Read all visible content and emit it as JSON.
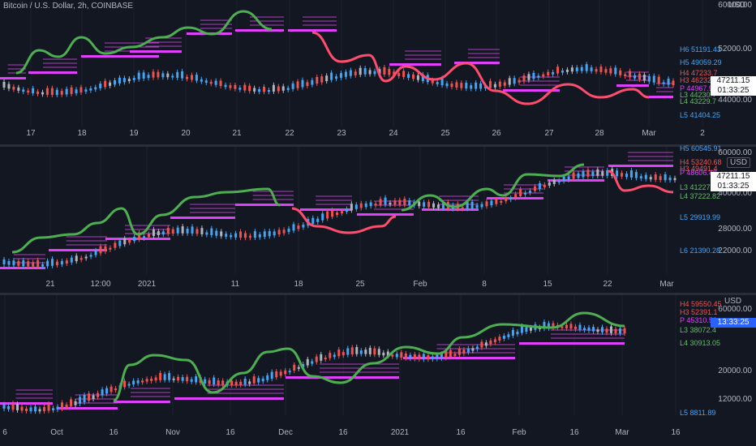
{
  "panes": [
    {
      "id": "top",
      "title": "Bitcoin / U.S. Dollar, 2h, COINBASE",
      "currency": "USD",
      "price_axis": [
        "60000.00",
        "52000.00",
        "44000.00"
      ],
      "levels": [
        {
          "text": "H6 51191.43",
          "color": "#42a5f5"
        },
        {
          "text": "H5 49059.29",
          "color": "#42a5f5"
        },
        {
          "text": "H4 47233.7",
          "color": "#ef5350"
        },
        {
          "text": "H3 46232.7",
          "color": "#ef5350"
        },
        {
          "text": "P 44967.92",
          "color": "#e040fb"
        },
        {
          "text": "L3 44230.7",
          "color": "#66bb6a"
        },
        {
          "text": "L4 43229.7",
          "color": "#66bb6a"
        },
        {
          "text": "L5 41404.25",
          "color": "#42a5f5"
        }
      ],
      "last_price": "47211.15",
      "countdown": "01:33:25",
      "time_axis": [
        "17",
        "18",
        "19",
        "20",
        "21",
        "22",
        "23",
        "24",
        "25",
        "26",
        "27",
        "28",
        "Mar",
        "2"
      ]
    },
    {
      "id": "mid",
      "currency": "USD",
      "price_axis": [
        "60000.00",
        "40000.00",
        "28000.00",
        "22000.00"
      ],
      "levels": [
        {
          "text": "H5 60545.91",
          "color": "#42a5f5"
        },
        {
          "text": "H4 53240.68",
          "color": "#ef5350"
        },
        {
          "text": "H3 49491.4",
          "color": "#ef5350"
        },
        {
          "text": "P 48606.48",
          "color": "#e040fb"
        },
        {
          "text": "L3 41227.29",
          "color": "#66bb6a"
        },
        {
          "text": "L4 37222.82",
          "color": "#66bb6a"
        },
        {
          "text": "L5 29919.99",
          "color": "#42a5f5"
        },
        {
          "text": "L6 21390.28",
          "color": "#42a5f5"
        }
      ],
      "last_price": "47211.15",
      "countdown": "01:33:25",
      "time_axis": [
        {
          "text": "21",
          "color": "#b2b5be"
        },
        {
          "text": "12:00",
          "color": "#b2b5be"
        },
        {
          "text": "2021",
          "color": "#e040fb"
        },
        {
          "text": "11",
          "color": "#b2b5be"
        },
        {
          "text": "18",
          "color": "#b2b5be"
        },
        {
          "text": "25",
          "color": "#b2b5be"
        },
        {
          "text": "Feb",
          "color": "#b2b5be"
        },
        {
          "text": "8",
          "color": "#b2b5be"
        },
        {
          "text": "15",
          "color": "#b2b5be"
        },
        {
          "text": "22",
          "color": "#b2b5be"
        },
        {
          "text": "Mar",
          "color": "#b2b5be"
        }
      ]
    },
    {
      "id": "bot",
      "currency": "USD",
      "price_axis": [
        "60000.00",
        "20000.00",
        "12000.00"
      ],
      "levels": [
        {
          "text": "H4 59550.45",
          "color": "#ef5350"
        },
        {
          "text": "H3 52391.1",
          "color": "#ef5350"
        },
        {
          "text": "P 45310.58",
          "color": "#e040fb"
        },
        {
          "text": "L3 38072.4",
          "color": "#66bb6a"
        },
        {
          "text": "L4 30913.05",
          "color": "#66bb6a"
        },
        {
          "text": "L5 8811.89",
          "color": "#42a5f5"
        }
      ],
      "countdown": "13:33:25",
      "time_axis": [
        "6",
        "Oct",
        "16",
        "Nov",
        "16",
        "Dec",
        "16",
        "2021",
        "16",
        "Feb",
        "16",
        "Mar",
        "16"
      ]
    }
  ],
  "colors": {
    "background": "#131722",
    "up": "#42a5f5",
    "down": "#ef5350",
    "neutral": "#b2b5be",
    "pivot": "#e040fb",
    "curve_green": "#4caf50",
    "curve_red": "#ff4d6d",
    "price_tag": "#26a69a"
  }
}
